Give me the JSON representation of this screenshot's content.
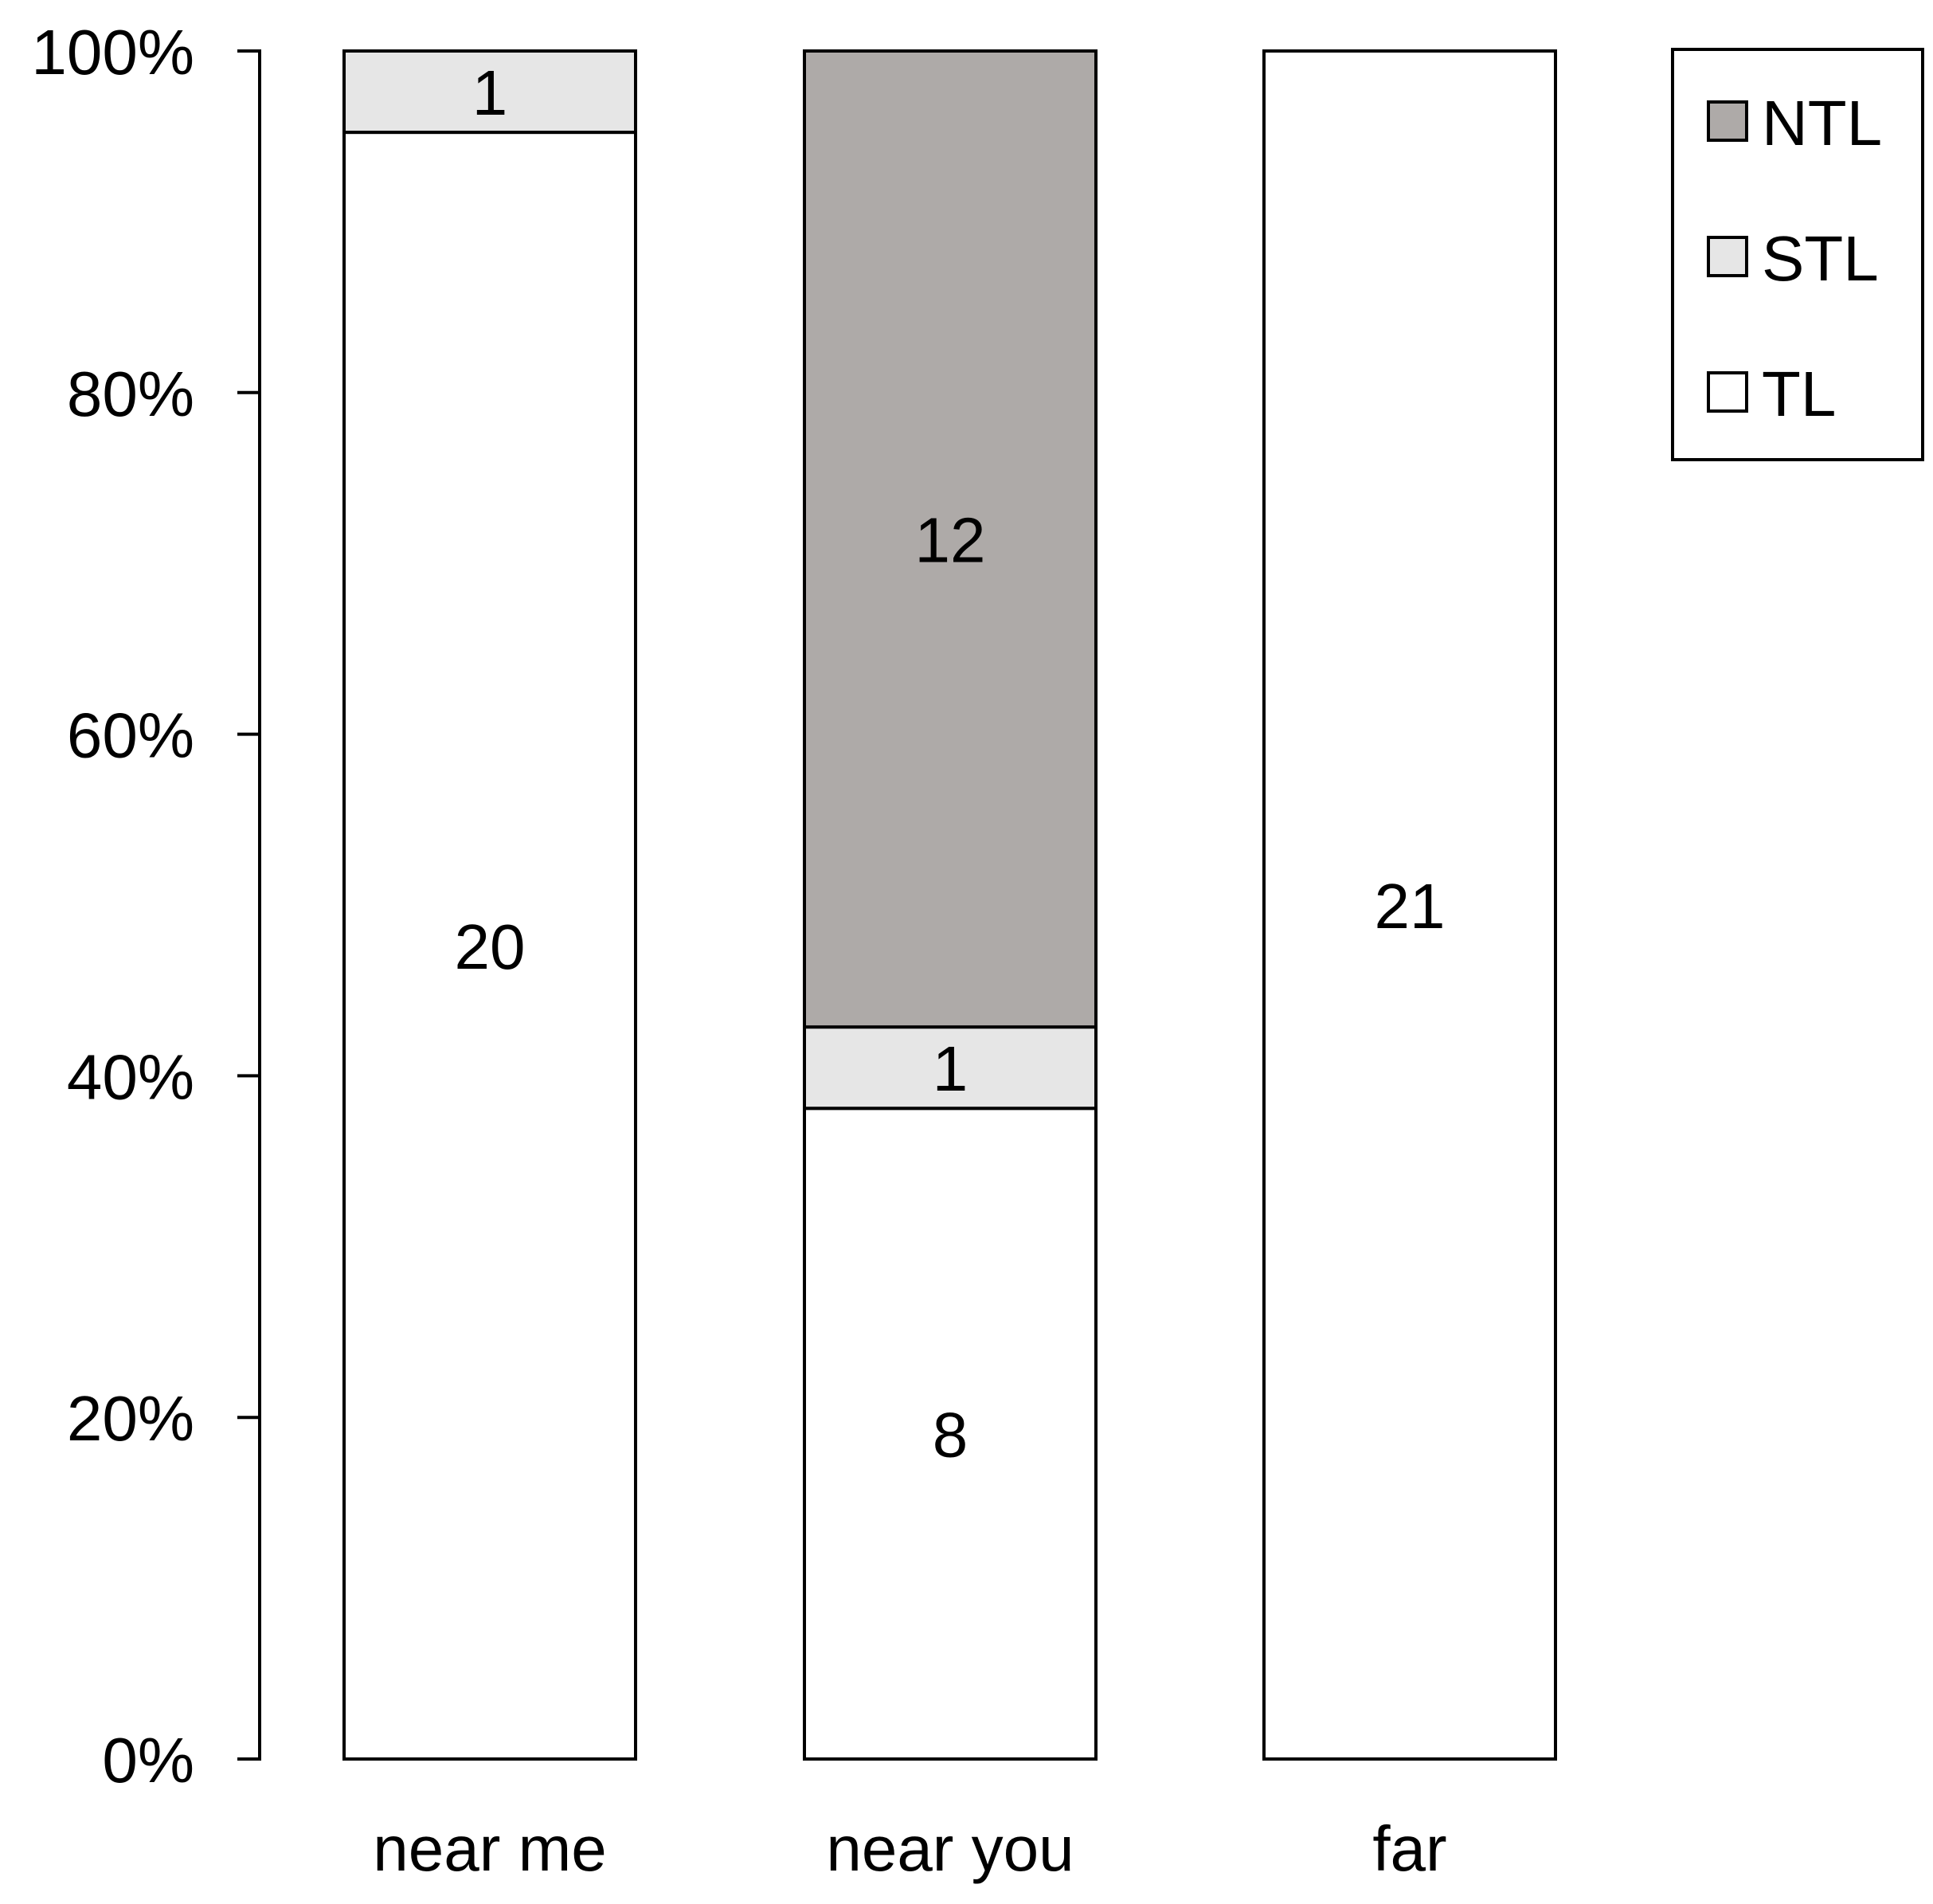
{
  "chart_data": {
    "type": "bar",
    "stacked": true,
    "normalized": true,
    "title": "",
    "xlabel": "",
    "ylabel": "",
    "ylim": [
      0,
      100
    ],
    "y_unit": "%",
    "y_ticks": [
      0,
      20,
      40,
      60,
      80,
      100
    ],
    "y_tick_labels": [
      "0%",
      "20%",
      "40%",
      "60%",
      "80%",
      "100%"
    ],
    "categories": [
      "near me",
      "near you",
      "far"
    ],
    "series": [
      {
        "name": "TL",
        "color": "#ffffff",
        "values": [
          20,
          8,
          21
        ]
      },
      {
        "name": "STL",
        "color": "#e6e6e6",
        "values": [
          1,
          1,
          0
        ]
      },
      {
        "name": "NTL",
        "color": "#aeaaa8",
        "values": [
          0,
          12,
          0
        ]
      }
    ],
    "legend": {
      "position": "top-right",
      "order": [
        "NTL",
        "STL",
        "TL"
      ]
    },
    "grid": false
  }
}
